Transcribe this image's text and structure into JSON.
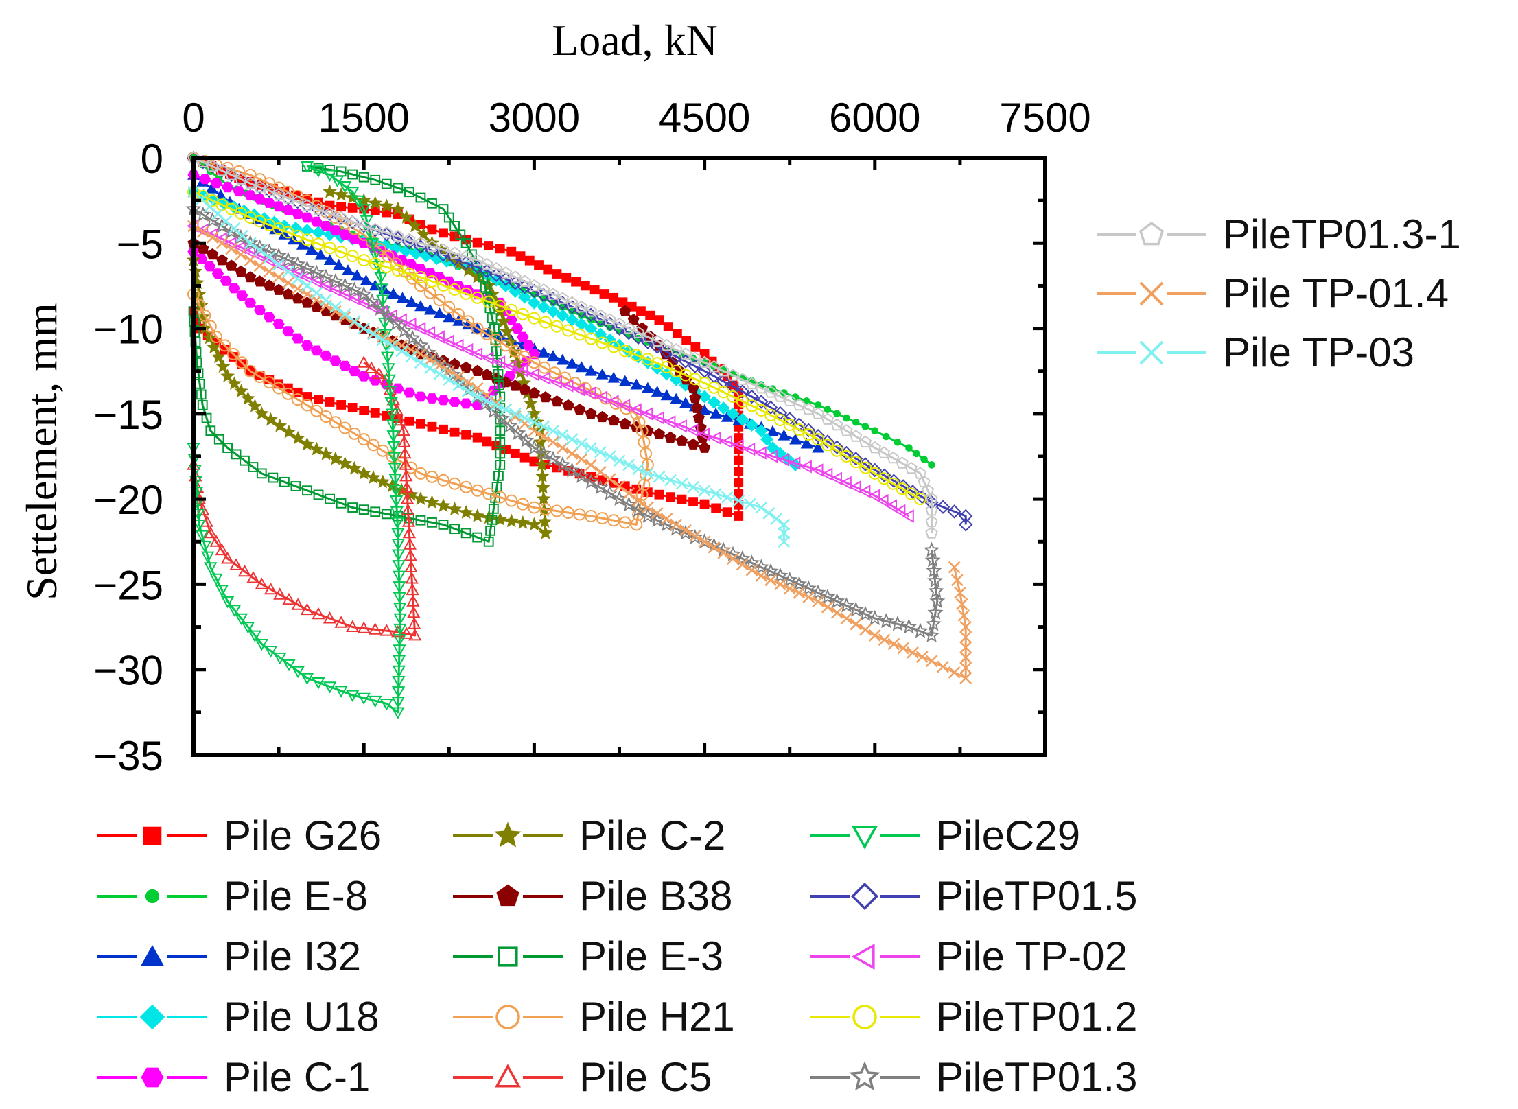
{
  "chart_data": {
    "type": "line",
    "title": "",
    "xlabel": "Load, kN",
    "ylabel": "Settelement, mm",
    "xlim": [
      0,
      7500
    ],
    "ylim": [
      -35,
      0
    ],
    "x_axis_position": "top",
    "x_ticks": [
      "0",
      "1500",
      "3000",
      "4500",
      "6000",
      "7500"
    ],
    "y_ticks": [
      "0",
      "−5",
      "−10",
      "−15",
      "−20",
      "−25",
      "−30",
      "−35"
    ],
    "grid": false,
    "legend_placement": "right and bottom",
    "series": [
      {
        "name": "Pile G26",
        "color": "#ff0000",
        "marker": "square-filled",
        "x": [
          0,
          400,
          800,
          1200,
          1500,
          1800,
          2100,
          2400,
          2800,
          3200,
          3700,
          4100,
          4500,
          4700,
          4800,
          4800,
          4500,
          4000,
          3500,
          3000,
          2500,
          2000,
          1500,
          1000,
          500,
          50,
          0
        ],
        "y": [
          0,
          -1.2,
          -2,
          -2.8,
          -3,
          -3.3,
          -4.2,
          -4.8,
          -5.5,
          -6.8,
          -8.2,
          -9.5,
          -11.5,
          -12.8,
          -13.8,
          -21,
          -20.3,
          -19.6,
          -18.7,
          -17.8,
          -16.4,
          -15.6,
          -14.8,
          -14,
          -12.5,
          -10,
          -9
        ]
      },
      {
        "name": "Pile E-8",
        "color": "#00cc33",
        "marker": "dot",
        "x": [
          0,
          300,
          700,
          1000,
          1500,
          2000,
          2500,
          3000,
          3500,
          4000,
          4500,
          5000,
          5500,
          6000,
          6300,
          6500
        ],
        "y": [
          0,
          -1.6,
          -2.8,
          -3.5,
          -4.7,
          -5.5,
          -6.8,
          -8,
          -9.5,
          -10.8,
          -12,
          -13.3,
          -14.5,
          -16,
          -17,
          -18
        ]
      },
      {
        "name": "Pile I32",
        "color": "#0033cc",
        "marker": "triangle-filled",
        "x": [
          0,
          400,
          800,
          1200,
          1600,
          2000,
          2500,
          3000,
          3500,
          4000,
          4500,
          5000,
          5500
        ],
        "y": [
          -1,
          -3,
          -4.5,
          -6,
          -7.5,
          -8.7,
          -10,
          -11.2,
          -12.5,
          -13.5,
          -14.8,
          -15.8,
          -17
        ]
      },
      {
        "name": "Pile U18",
        "color": "#00e5e5",
        "marker": "diamond-filled",
        "x": [
          0,
          800,
          1600,
          2500,
          3000,
          3500,
          4000,
          4500,
          5000,
          5100,
          5300
        ],
        "y": [
          -2,
          -4,
          -5,
          -6.5,
          -8.5,
          -10,
          -12,
          -14,
          -16,
          -17,
          -18
        ]
      },
      {
        "name": "Pile C-1",
        "color": "#ff00ff",
        "marker": "hexagon-filled",
        "x": [
          0,
          500,
          1000,
          1500,
          2000,
          2500,
          2700,
          2800,
          3000,
          2500,
          2000,
          1500,
          1000,
          500,
          0
        ],
        "y": [
          -1,
          -2.2,
          -3.5,
          -5,
          -6.5,
          -8,
          -8.5,
          -9.5,
          -11.5,
          -14.5,
          -14,
          -12.8,
          -11,
          -8.5,
          -5.5
        ]
      },
      {
        "name": "Pile C-2",
        "color": "#808000",
        "marker": "star-filled",
        "x": [
          0,
          100,
          300,
          600,
          1000,
          1500,
          2000,
          2500,
          3000,
          3100,
          3050,
          3000,
          2700,
          2600,
          2500,
          2100,
          1800,
          1500,
          1200
        ],
        "y": [
          -6,
          -10,
          -12.8,
          -15,
          -16.8,
          -18.5,
          -20,
          -21,
          -21.5,
          -22,
          -16,
          -15,
          -9,
          -7.5,
          -7,
          -5,
          -3,
          -2.5,
          -2
        ]
      },
      {
        "name": "Pile B38",
        "color": "#8b0000",
        "marker": "pentagon-filled",
        "x": [
          0,
          500,
          1000,
          1500,
          2000,
          2500,
          3000,
          3500,
          4000,
          4500,
          4400,
          4100,
          3800
        ],
        "y": [
          -5,
          -7,
          -8.5,
          -10,
          -11.5,
          -12.5,
          -13.8,
          -15,
          -16,
          -17,
          -13.5,
          -11,
          -9
        ]
      },
      {
        "name": "Pile E-3",
        "color": "#009933",
        "marker": "square-open",
        "x": [
          0,
          30,
          80,
          150,
          300,
          600,
          1000,
          1400,
          1800,
          2200,
          2600,
          2700,
          2700,
          2650,
          2550,
          2400,
          2200,
          1900,
          1600,
          1300,
          1000
        ],
        "y": [
          -9,
          -12,
          -14.5,
          -16,
          -17,
          -18.5,
          -19.5,
          -20.5,
          -21,
          -21.5,
          -22.5,
          -18,
          -14,
          -10,
          -7,
          -5,
          -3,
          -2,
          -1.3,
          -0.8,
          -0.5
        ]
      },
      {
        "name": "Pile H21",
        "color": "#f0a050",
        "marker": "circle-open",
        "x": [
          0,
          200,
          500,
          1000,
          1500,
          2000,
          2500,
          3000,
          3500,
          3900,
          4000,
          3950,
          3900,
          3000,
          2500,
          2000,
          1500,
          1000,
          500,
          0
        ],
        "y": [
          -8,
          -10.5,
          -12.5,
          -14.5,
          -16.5,
          -18.5,
          -19.5,
          -20.5,
          -21,
          -21.5,
          -18,
          -16,
          -15,
          -12,
          -10,
          -7.5,
          -4.5,
          -2.5,
          -1,
          0
        ]
      },
      {
        "name": "Pile C5",
        "color": "#ee3333",
        "marker": "triangle-open",
        "x": [
          0,
          50,
          150,
          300,
          600,
          1000,
          1400,
          1800,
          1950,
          1900,
          1850,
          1700,
          1500
        ],
        "y": [
          -18,
          -20,
          -22,
          -23.5,
          -25,
          -26.5,
          -27.5,
          -27.8,
          -28,
          -22,
          -16,
          -13,
          -12
        ]
      },
      {
        "name": "PileC29",
        "color": "#00c853",
        "marker": "triangle-down-open",
        "x": [
          0,
          50,
          150,
          300,
          600,
          1000,
          1400,
          1700,
          1800,
          1820,
          1800,
          1750,
          1650,
          1500,
          1400,
          1200,
          1000
        ],
        "y": [
          -17,
          -21.5,
          -24,
          -26,
          -28.5,
          -30.5,
          -31.5,
          -32,
          -32.5,
          -27,
          -22,
          -15,
          -7,
          -3,
          -2,
          -1,
          -0.5
        ]
      },
      {
        "name": "PileTP01.5",
        "color": "#4040b0",
        "marker": "diamond-open",
        "x": [
          0,
          500,
          1000,
          1500,
          2000,
          2500,
          3000,
          3500,
          4000,
          4500,
          5000,
          5500,
          6000,
          6500,
          6800,
          6800
        ],
        "y": [
          0,
          -1.5,
          -2.8,
          -4,
          -5.2,
          -6.4,
          -7.8,
          -9.2,
          -10.8,
          -12.5,
          -14.3,
          -16.3,
          -18.3,
          -20.2,
          -21,
          -21.5
        ]
      },
      {
        "name": "Pile TP-02",
        "color": "#ee44ee",
        "marker": "triangle-left-open",
        "x": [
          0,
          500,
          1000,
          1500,
          2000,
          2500,
          3000,
          3500,
          4000,
          4500,
          5000,
          5500,
          6000,
          6300
        ],
        "y": [
          -4,
          -5.5,
          -7,
          -8.5,
          -10,
          -11.5,
          -12.7,
          -13.8,
          -15,
          -16.2,
          -17.3,
          -18.3,
          -19.8,
          -21
        ]
      },
      {
        "name": "PileTP01.2",
        "color": "#e8e800",
        "marker": "circle-open",
        "x": [
          0,
          500,
          1000,
          1500,
          2000,
          2500,
          3000,
          3500,
          4000,
          4500,
          5000,
          5500,
          6000,
          6400
        ],
        "y": [
          -2,
          -3.5,
          -4.8,
          -6,
          -7,
          -8.2,
          -9.4,
          -10.6,
          -11.8,
          -13.2,
          -14.8,
          -16.5,
          -18.5,
          -20
        ]
      },
      {
        "name": "PileTP01.3",
        "color": "#808080",
        "marker": "star-open",
        "x": [
          0,
          500,
          1000,
          1500,
          2000,
          2500,
          3000,
          3500,
          4000,
          4500,
          5000,
          5500,
          6000,
          6300,
          6500,
          6550,
          6500
        ],
        "y": [
          -3,
          -5,
          -6.5,
          -8,
          -11,
          -14,
          -17,
          -19,
          -21,
          -22.5,
          -24,
          -25.5,
          -27,
          -27.5,
          -28,
          -26,
          -23
        ]
      },
      {
        "name": "PileTP01.3-1",
        "color": "#c8c8c8",
        "marker": "pentagon-open",
        "x": [
          0,
          500,
          1000,
          1500,
          2000,
          2500,
          3000,
          3500,
          4000,
          4500,
          5000,
          5500,
          6000,
          6400,
          6500,
          6500
        ],
        "y": [
          0,
          -1.5,
          -2.8,
          -4,
          -5,
          -6,
          -7.5,
          -9,
          -10.5,
          -12,
          -13.5,
          -15,
          -17,
          -18.5,
          -20,
          -22
        ]
      },
      {
        "name": "Pile TP-01.4",
        "color": "#f0a060",
        "marker": "x",
        "x": [
          0,
          500,
          1000,
          1500,
          2000,
          2500,
          3000,
          3500,
          4000,
          4500,
          5000,
          5500,
          6000,
          6500,
          6800,
          6800,
          6750,
          6700
        ],
        "y": [
          -4,
          -6,
          -8,
          -10,
          -11.5,
          -13.5,
          -16,
          -18,
          -20.5,
          -22.5,
          -24.5,
          -26,
          -28,
          -29.5,
          -30.5,
          -27.5,
          -25.5,
          -24
        ]
      },
      {
        "name": "Pile TP-03",
        "color": "#80f0f0",
        "marker": "x",
        "x": [
          0,
          500,
          1000,
          1500,
          2000,
          2500,
          3000,
          3500,
          4000,
          4500,
          5000,
          5200,
          5200
        ],
        "y": [
          -2,
          -5,
          -7.5,
          -10,
          -12,
          -14,
          -15.5,
          -17,
          -18.5,
          -19.5,
          -20.5,
          -21.5,
          -22.5
        ]
      }
    ],
    "legend_right": [
      "PileTP01.3-1",
      "Pile TP-01.4",
      "Pile TP-03"
    ],
    "legend_bottom": [
      [
        "Pile G26",
        "Pile C-2",
        "PileC29"
      ],
      [
        "Pile E-8",
        "Pile B38",
        "PileTP01.5"
      ],
      [
        "Pile I32",
        "Pile E-3",
        "Pile TP-02"
      ],
      [
        "Pile U18",
        "Pile H21",
        "PileTP01.2"
      ],
      [
        "Pile C-1",
        "Pile C5",
        "PileTP01.3"
      ]
    ]
  }
}
